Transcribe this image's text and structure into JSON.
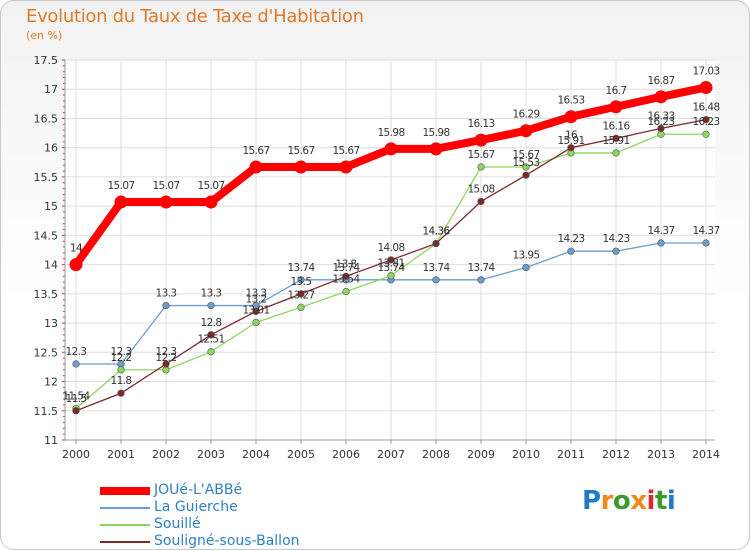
{
  "header": {
    "title": "Evolution du Taux de Taxe d'Habitation",
    "unit": "(en %)"
  },
  "logo": {
    "text": "Proxiti",
    "colors": [
      "#1f7bc7",
      "#f08a1d",
      "#3b9a2c",
      "#f08a1d",
      "#d62b2b",
      "#3b9a2c",
      "#1f7bc7"
    ]
  },
  "chart_data": {
    "type": "line",
    "title": "Evolution du Taux de Taxe d'Habitation",
    "ylabel": "(en %)",
    "xlabel": "",
    "x": [
      2000,
      2001,
      2002,
      2003,
      2004,
      2005,
      2006,
      2007,
      2008,
      2009,
      2010,
      2011,
      2012,
      2013,
      2014
    ],
    "x_tick_labels": [
      "2000",
      "2001",
      "2002",
      "2003",
      "2004",
      "2005",
      "2006",
      "2007",
      "2008",
      "2009",
      "2010",
      "2011",
      "2012",
      "2013",
      "2014"
    ],
    "y_tick_labels": [
      "11",
      "11.5",
      "12",
      "12.5",
      "13",
      "13.5",
      "14",
      "14.5",
      "15",
      "15.5",
      "16",
      "16.5",
      "17",
      "17.5"
    ],
    "ylim": [
      11,
      17.5
    ],
    "grid": true,
    "legend_position": "bottom-left",
    "series": [
      {
        "name": "JOUé-L'ABBé",
        "color": "#ff0000",
        "values": [
          14,
          15.07,
          15.07,
          15.07,
          15.67,
          15.67,
          15.67,
          15.98,
          15.98,
          16.13,
          16.29,
          16.53,
          16.7,
          16.87,
          17.03
        ],
        "labels": [
          "14",
          "15.07",
          "15.07",
          "15.07",
          "15.67",
          "15.67",
          "15.67",
          "15.98",
          "15.98",
          "16.13",
          "16.29",
          "16.53",
          "16.7",
          "16.87",
          "17.03"
        ]
      },
      {
        "name": "La Guierche",
        "color": "#6a9ecf",
        "values": [
          12.3,
          12.3,
          13.3,
          13.3,
          13.3,
          13.74,
          13.74,
          13.74,
          13.74,
          13.74,
          13.95,
          14.23,
          14.23,
          14.37,
          14.37
        ],
        "labels": [
          "12.3",
          "12.3",
          "13.3",
          "13.3",
          "13.3",
          "13.74",
          "13.74",
          "13.74",
          "13.74",
          "13.74",
          "13.95",
          "14.23",
          "14.23",
          "14.37",
          "14.37"
        ]
      },
      {
        "name": "Souillé",
        "color": "#8ed660",
        "values": [
          11.54,
          12.2,
          12.2,
          12.51,
          13.01,
          13.27,
          13.54,
          13.81,
          14.36,
          15.67,
          15.67,
          15.91,
          15.91,
          16.23,
          16.23
        ],
        "labels": [
          "11.54",
          "12.2",
          "12.2",
          "12.51",
          "13.01",
          "13.27",
          "13.54",
          "13.81",
          "14.36",
          "15.67",
          "15.67",
          "15.91",
          "15.91",
          "16.23",
          "16.23"
        ]
      },
      {
        "name": "Souligné-sous-Ballon",
        "color": "#7b2a2a",
        "values": [
          11.5,
          11.8,
          12.3,
          12.8,
          13.2,
          13.5,
          13.8,
          14.08,
          14.36,
          15.08,
          15.53,
          16,
          16.16,
          16.33,
          16.48
        ],
        "labels": [
          "11.5",
          "11.8",
          "12.3",
          "12.8",
          "13.2",
          "13.5",
          "13.8",
          "14.08",
          "14.36",
          "15.08",
          "15.53",
          "16",
          "16.16",
          "16.33",
          "16.48"
        ]
      }
    ]
  }
}
